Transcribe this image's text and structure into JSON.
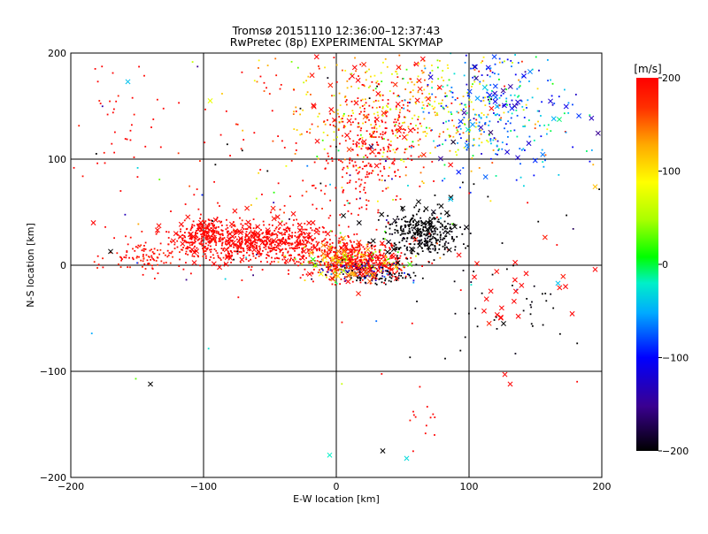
{
  "chart_data": {
    "type": "scatter",
    "title": "Tromsø 20151110 12:36:00–12:37:43",
    "subtitle": "RwPretec (8p) EXPERIMENTAL SKYMAP",
    "xlabel": "E-W location [km]",
    "ylabel": "N-S location [km]",
    "xlim": [
      -200,
      200
    ],
    "ylim": [
      -200,
      200
    ],
    "xticks": [
      -200,
      -100,
      0,
      100,
      200
    ],
    "yticks": [
      -200,
      -100,
      0,
      100,
      200
    ],
    "grid": true,
    "colorbar": {
      "label": "[m/s]",
      "min": -200,
      "max": 200,
      "ticks": [
        200,
        100,
        0,
        -100,
        -200
      ],
      "colormap": "rainbow-black-to-red"
    },
    "markers": [
      "dot",
      "x"
    ],
    "clusters": [
      {
        "x": -55,
        "y": 22,
        "sx": 28,
        "sy": 9,
        "n": 600,
        "v": 200,
        "vs": 10,
        "marker": "dot"
      },
      {
        "x": -98,
        "y": 28,
        "sx": 10,
        "sy": 9,
        "n": 220,
        "v": 200,
        "vs": 10,
        "marker": "dot"
      },
      {
        "x": -140,
        "y": 8,
        "sx": 16,
        "sy": 8,
        "n": 120,
        "v": 195,
        "vs": 20,
        "marker": "dot"
      },
      {
        "x": 15,
        "y": 4,
        "sx": 20,
        "sy": 8,
        "n": 500,
        "v": 200,
        "vs": 15,
        "marker": "dot"
      },
      {
        "x": 15,
        "y": 2,
        "sx": 18,
        "sy": 9,
        "n": 80,
        "v": 60,
        "vs": 40,
        "marker": "dot"
      },
      {
        "x": 20,
        "y": -6,
        "sx": 16,
        "sy": 5,
        "n": 90,
        "v": -140,
        "vs": 40,
        "marker": "dot"
      },
      {
        "x": 35,
        "y": -10,
        "sx": 14,
        "sy": 4,
        "n": 60,
        "v": -200,
        "vs": 5,
        "marker": "dot"
      },
      {
        "x": 65,
        "y": 30,
        "sx": 14,
        "sy": 10,
        "n": 330,
        "v": -200,
        "vs": 5,
        "marker": "dot"
      },
      {
        "x": 50,
        "y": 150,
        "sx": 45,
        "sy": 32,
        "n": 420,
        "v": 110,
        "vs": 40,
        "marker": "dot"
      },
      {
        "x": 120,
        "y": 150,
        "sx": 30,
        "sy": 30,
        "n": 260,
        "v": -60,
        "vs": 40,
        "marker": "dot"
      },
      {
        "x": 25,
        "y": 110,
        "sx": 18,
        "sy": 30,
        "n": 260,
        "v": 200,
        "vs": 10,
        "marker": "dot"
      },
      {
        "x": -20,
        "y": 100,
        "sx": 60,
        "sy": 50,
        "n": 90,
        "v": 200,
        "vs": 15,
        "marker": "dot"
      },
      {
        "x": 0,
        "y": 60,
        "sx": 100,
        "sy": 70,
        "n": 140,
        "v": 0,
        "vs": 200,
        "marker": "dot"
      },
      {
        "x": -170,
        "y": 140,
        "sx": 20,
        "sy": 35,
        "n": 35,
        "v": 200,
        "vs": 10,
        "marker": "dot"
      },
      {
        "x": 130,
        "y": -40,
        "sx": 30,
        "sy": 20,
        "n": 35,
        "v": -200,
        "vs": 5,
        "marker": "dot"
      },
      {
        "x": 60,
        "y": -130,
        "sx": 15,
        "sy": 20,
        "n": 12,
        "v": 200,
        "vs": 5,
        "marker": "dot"
      },
      {
        "x": -70,
        "y": 25,
        "sx": 35,
        "sy": 12,
        "n": 90,
        "v": 200,
        "vs": 5,
        "marker": "x"
      },
      {
        "x": 15,
        "y": 4,
        "sx": 18,
        "sy": 10,
        "n": 70,
        "v": 170,
        "vs": 70,
        "marker": "x"
      },
      {
        "x": 60,
        "y": 30,
        "sx": 18,
        "sy": 14,
        "n": 35,
        "v": -200,
        "vs": 5,
        "marker": "x"
      },
      {
        "x": 30,
        "y": 150,
        "sx": 35,
        "sy": 30,
        "n": 40,
        "v": 200,
        "vs": 15,
        "marker": "x"
      },
      {
        "x": 120,
        "y": 145,
        "sx": 30,
        "sy": 35,
        "n": 50,
        "v": -90,
        "vs": 40,
        "marker": "x"
      },
      {
        "x": 120,
        "y": -20,
        "sx": 30,
        "sy": 20,
        "n": 25,
        "v": 200,
        "vs": 10,
        "marker": "x"
      }
    ],
    "points": [
      {
        "x": -170,
        "y": 13,
        "v": -200,
        "marker": "x"
      },
      {
        "x": -140,
        "y": -112,
        "v": -200,
        "marker": "x"
      },
      {
        "x": -157,
        "y": 173,
        "v": -40,
        "marker": "x"
      },
      {
        "x": -95,
        "y": 155,
        "v": 80,
        "marker": "x"
      },
      {
        "x": 35,
        "y": -175,
        "v": -200,
        "marker": "x"
      },
      {
        "x": 53,
        "y": -182,
        "v": -30,
        "marker": "x"
      },
      {
        "x": -5,
        "y": -179,
        "v": -20,
        "marker": "x"
      },
      {
        "x": 127,
        "y": -103,
        "v": 200,
        "marker": "x"
      },
      {
        "x": 131,
        "y": -112,
        "v": 200,
        "marker": "x"
      },
      {
        "x": 126,
        "y": -55,
        "v": -200,
        "marker": "x"
      },
      {
        "x": 167,
        "y": -17,
        "v": -40,
        "marker": "x"
      },
      {
        "x": 195,
        "y": -4,
        "v": 200,
        "marker": "x"
      },
      {
        "x": 195,
        "y": 74,
        "v": 120,
        "marker": "x"
      },
      {
        "x": -183,
        "y": 40,
        "v": 200,
        "marker": "x"
      },
      {
        "x": 82,
        "y": -88,
        "v": -200,
        "marker": "dot"
      },
      {
        "x": 58,
        "y": -138,
        "v": 200,
        "marker": "dot"
      },
      {
        "x": 74,
        "y": -160,
        "v": 200,
        "marker": "dot"
      }
    ]
  }
}
